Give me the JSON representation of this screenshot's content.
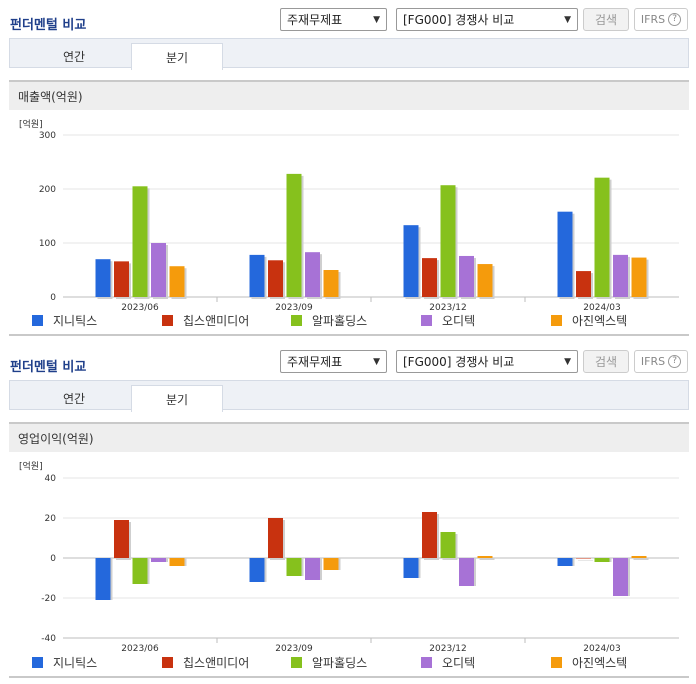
{
  "colors": {
    "series": [
      "#2468dc",
      "#c8320f",
      "#86c11d",
      "#a772d6",
      "#f59b0c"
    ],
    "title": "#1f3f8a"
  },
  "panels": [
    {
      "title": "펀더멘털 비교",
      "select1": "주재무제표",
      "select2": "[FG000] 경쟁사 비교",
      "search_button": "검색",
      "ifrs_label": "IFRS",
      "help_icon": "?",
      "tabs": [
        "연간",
        "분기"
      ],
      "active_tab": "분기",
      "section_title": "매출액(억원)",
      "unit_label": "[억원]"
    },
    {
      "title": "펀더멘털 비교",
      "select1": "주재무제표",
      "select2": "[FG000] 경쟁사 비교",
      "search_button": "검색",
      "ifrs_label": "IFRS",
      "help_icon": "?",
      "tabs": [
        "연간",
        "분기"
      ],
      "active_tab": "분기",
      "section_title": "영업이익(억원)",
      "unit_label": "[억원]"
    }
  ],
  "chart_data": [
    {
      "type": "bar",
      "title": "매출액(억원)",
      "categories": [
        "2023/06",
        "2023/09",
        "2023/12",
        "2024/03"
      ],
      "yticks": [
        0,
        100,
        200,
        300
      ],
      "ylim": [
        0,
        300
      ],
      "series": [
        {
          "name": "지니틱스",
          "values": [
            70,
            78,
            133,
            158
          ]
        },
        {
          "name": "칩스앤미디어",
          "values": [
            66,
            68,
            72,
            48
          ]
        },
        {
          "name": "알파홀딩스",
          "values": [
            205,
            228,
            207,
            221
          ]
        },
        {
          "name": "오디텍",
          "values": [
            100,
            83,
            76,
            78
          ]
        },
        {
          "name": "아진엑스텍",
          "values": [
            57,
            50,
            61,
            73
          ]
        }
      ]
    },
    {
      "type": "bar",
      "title": "영업이익(억원)",
      "categories": [
        "2023/06",
        "2023/09",
        "2023/12",
        "2024/03"
      ],
      "yticks": [
        -40,
        -20,
        0,
        20,
        40
      ],
      "ylim": [
        -40,
        40
      ],
      "series": [
        {
          "name": "지니틱스",
          "values": [
            -21,
            -12,
            -10,
            -4
          ]
        },
        {
          "name": "칩스앤미디어",
          "values": [
            19,
            20,
            23,
            0
          ]
        },
        {
          "name": "알파홀딩스",
          "values": [
            -13,
            -9,
            13,
            -2
          ]
        },
        {
          "name": "오디텍",
          "values": [
            -2,
            -11,
            -14,
            -19
          ]
        },
        {
          "name": "아진엑스텍",
          "values": [
            -4,
            -6,
            1,
            1
          ]
        }
      ]
    }
  ]
}
